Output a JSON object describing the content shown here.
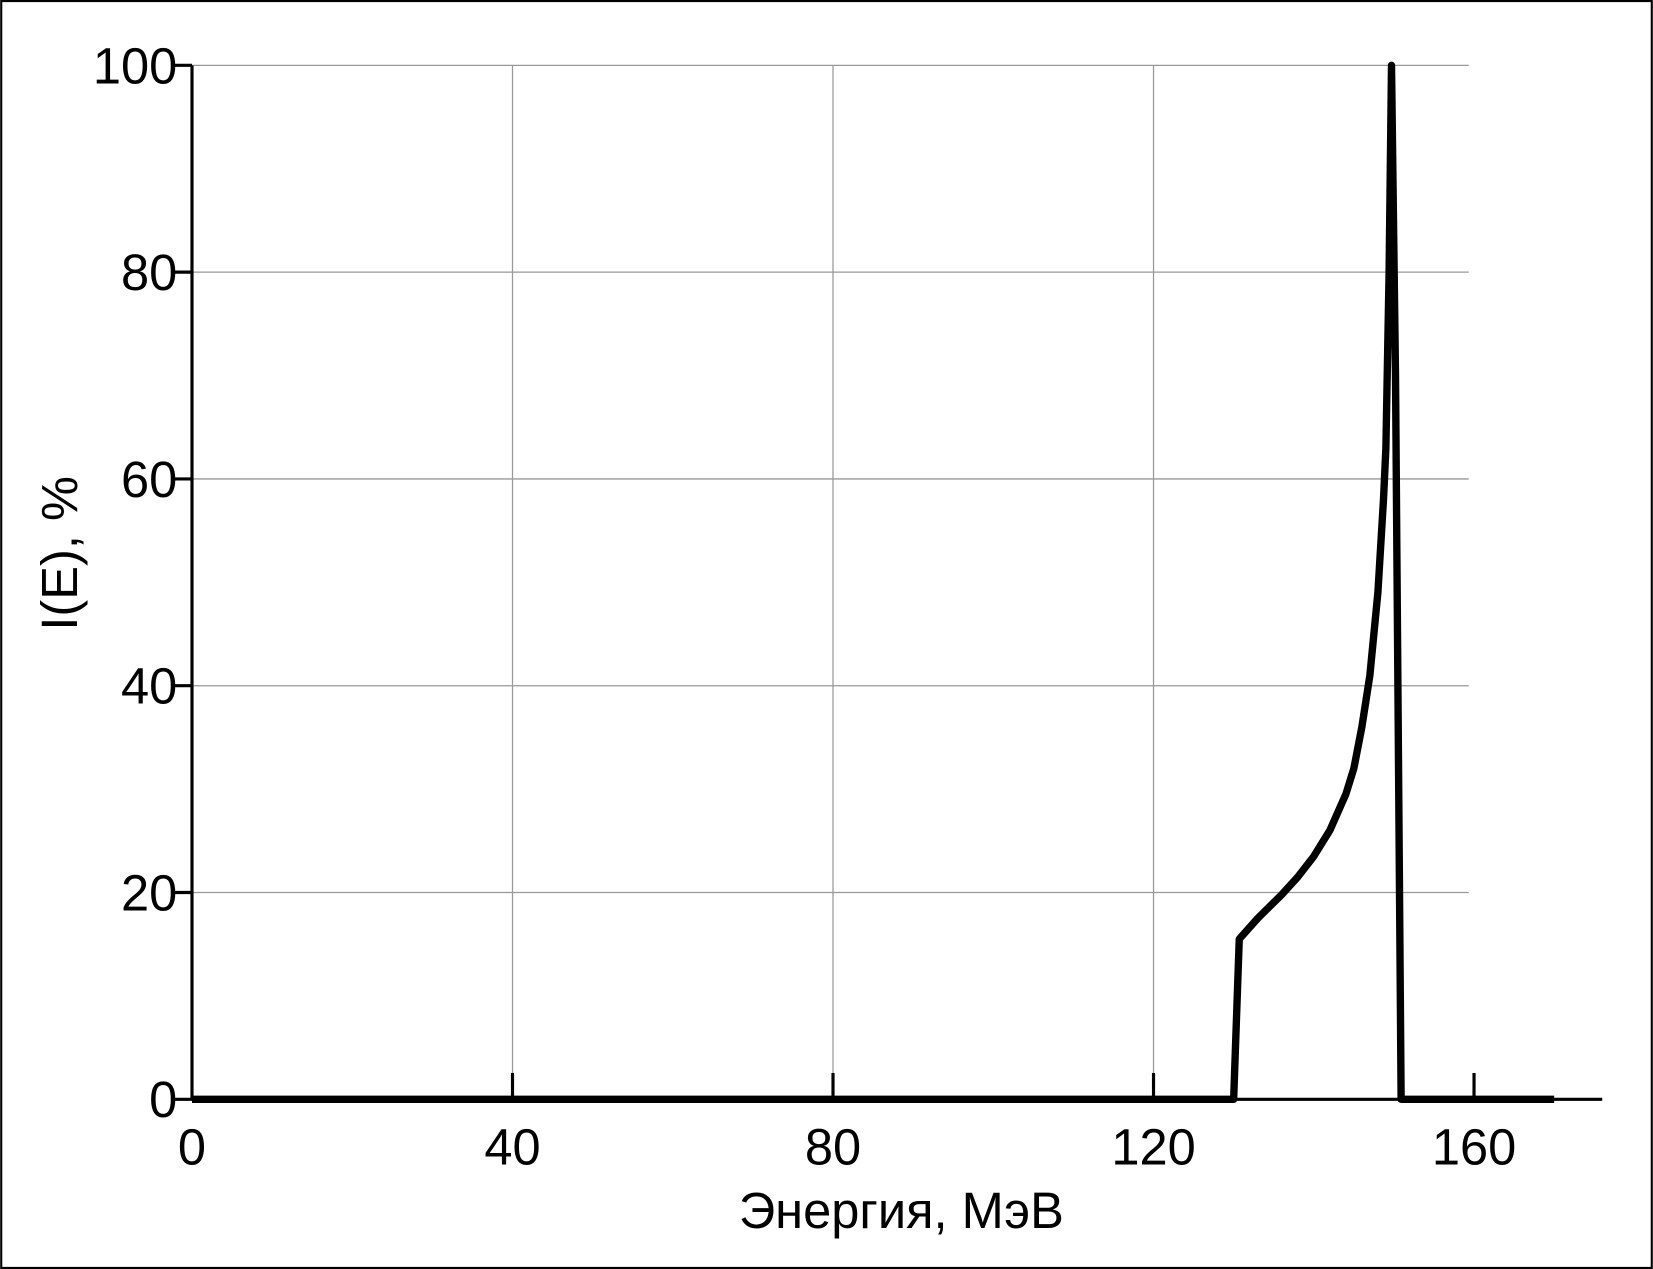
{
  "chart_data": {
    "type": "line",
    "xlabel": "Энергия, МэВ",
    "ylabel": "I(E), %",
    "x": [
      0,
      130,
      130.7,
      133,
      136,
      138,
      140,
      142,
      144,
      145,
      146,
      147,
      148,
      148.7,
      149,
      149.4,
      149.7,
      150.2,
      150.9,
      170
    ],
    "series": [
      {
        "color": "#000000",
        "values": [
          0,
          0,
          15.5,
          17.5,
          19.8,
          21.5,
          23.5,
          26,
          29.5,
          32,
          36,
          41,
          49,
          58,
          63,
          80,
          100,
          70,
          0,
          0
        ]
      }
    ],
    "xlim": [
      0,
      176
    ],
    "ylim": [
      0,
      100
    ],
    "xticks": [
      0,
      40,
      80,
      120,
      160
    ],
    "yticks": [
      0,
      20,
      40,
      60,
      80,
      100
    ],
    "grid": true
  }
}
